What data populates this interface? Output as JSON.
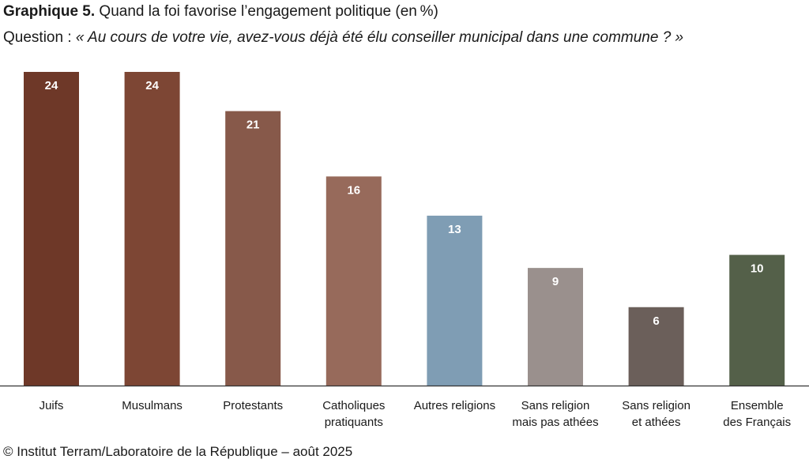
{
  "header": {
    "title_prefix": "Graphique 5.",
    "title_text": "Quand la foi favorise l’engagement politique (en %)",
    "question_prefix": "Question :",
    "question_text": "« Au cours de votre vie, avez-vous déjà été élu conseiller municipal dans une commune ? »"
  },
  "chart_data": {
    "type": "bar",
    "categories": [
      [
        "Juifs"
      ],
      [
        "Musulmans"
      ],
      [
        "Protestants"
      ],
      [
        "Catholiques",
        "pratiquants"
      ],
      [
        "Autres religions"
      ],
      [
        "Sans religion",
        "mais pas athées"
      ],
      [
        "Sans religion",
        "et athées"
      ],
      [
        "Ensemble",
        "des Français"
      ]
    ],
    "values": [
      24,
      24,
      21,
      16,
      13,
      9,
      6,
      10
    ],
    "colors": [
      "#6e3828",
      "#7d4634",
      "#87594a",
      "#976a5b",
      "#7f9db4",
      "#9a908d",
      "#6b5f5a",
      "#546049"
    ],
    "ylim": [
      0,
      24
    ],
    "grid": false,
    "legend": "none"
  },
  "footer": {
    "source": "© Institut Terram/Laboratoire de la République – août 2025"
  }
}
